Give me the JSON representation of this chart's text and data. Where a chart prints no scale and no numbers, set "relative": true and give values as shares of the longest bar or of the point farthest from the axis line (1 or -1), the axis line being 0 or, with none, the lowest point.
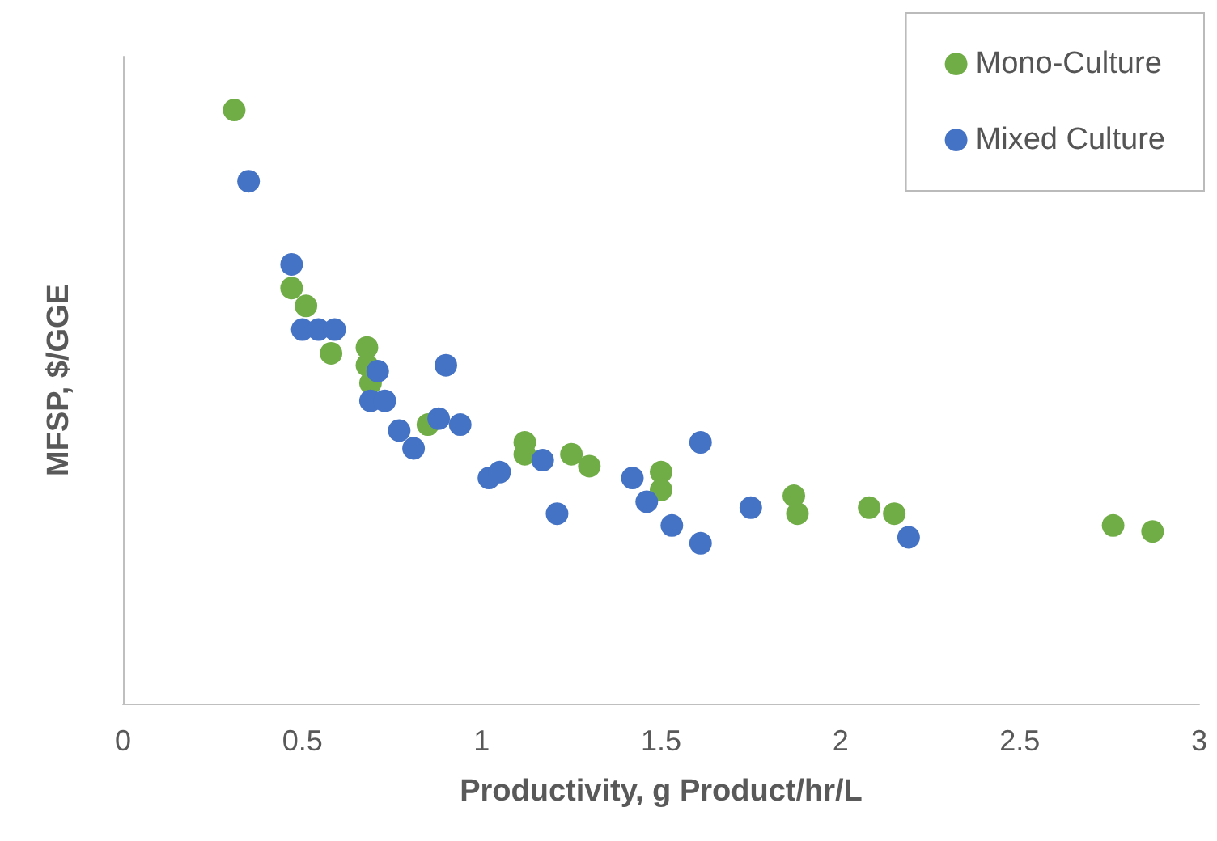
{
  "chart_data": {
    "type": "scatter",
    "xlabel": "Productivity, g Product/hr/L",
    "ylabel": "MFSP, $/GGE",
    "relative": true,
    "xlim": [
      0,
      3
    ],
    "xticks": [
      0,
      0.5,
      1,
      1.5,
      2,
      2.5,
      3
    ],
    "grid": false,
    "legend": "top right",
    "marker": "circle",
    "series": [
      {
        "name": "Mono-Culture",
        "color": "#70ad47",
        "x": [
          0.31,
          0.35,
          0.47,
          0.51,
          0.58,
          0.68,
          0.68,
          0.69,
          0.85,
          1.12,
          1.12,
          1.25,
          1.3,
          1.5,
          1.5,
          1.87,
          1.88,
          2.08,
          2.15,
          2.76,
          2.87
        ],
        "values": [
          1.0,
          null,
          0.7,
          0.67,
          0.59,
          0.6,
          0.57,
          0.54,
          0.47,
          0.44,
          0.42,
          0.42,
          0.4,
          0.39,
          0.36,
          0.35,
          0.32,
          0.33,
          0.32,
          0.3,
          0.29
        ]
      },
      {
        "name": "Mixed Culture",
        "color": "#4472c4",
        "x": [
          0.35,
          0.47,
          0.5,
          0.545,
          0.59,
          0.71,
          0.69,
          0.73,
          0.9,
          0.77,
          0.88,
          0.94,
          0.81,
          1.02,
          1.05,
          1.17,
          1.21,
          1.42,
          1.46,
          1.53,
          1.61,
          1.61,
          1.75,
          2.19
        ],
        "values": [
          0.88,
          0.74,
          0.63,
          0.63,
          0.63,
          0.56,
          0.51,
          0.51,
          0.57,
          0.46,
          0.48,
          0.47,
          0.43,
          0.38,
          0.39,
          0.41,
          0.32,
          0.38,
          0.34,
          0.3,
          0.44,
          0.27,
          0.33,
          0.28
        ]
      }
    ]
  }
}
